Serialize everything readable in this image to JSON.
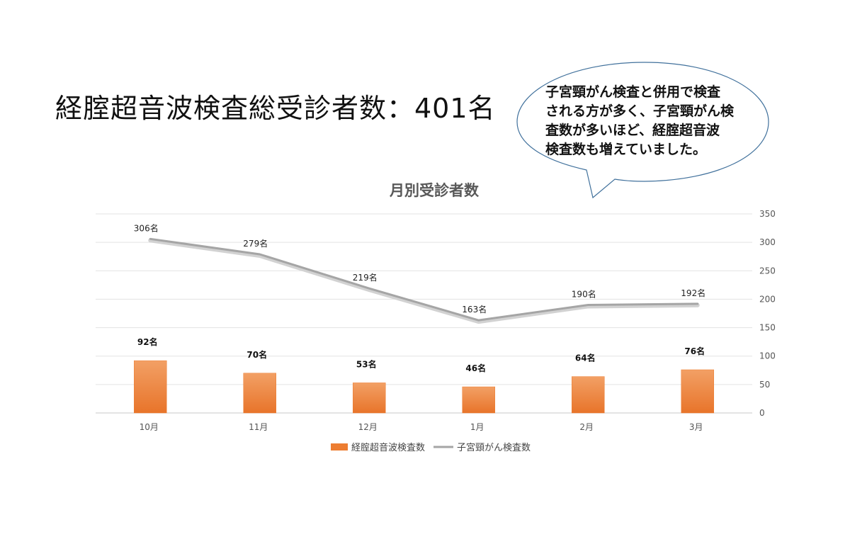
{
  "headline": "経腟超音波検査総受診者数：401名",
  "callout": {
    "lines": [
      "子宮頸がん検査と併用で検査",
      "される方が多く、子宮頸がん検",
      "査数が多いほど、経腟超音波",
      "検査数も増えていました。"
    ]
  },
  "colors": {
    "bar": "#ED7D31",
    "line": "#A5A5A5",
    "bubble_stroke": "#41719C"
  },
  "chart_data": {
    "type": "bar",
    "title": "月別受診者数",
    "categories": [
      "10月",
      "11月",
      "12月",
      "1月",
      "2月",
      "3月"
    ],
    "ylim": [
      0,
      350
    ],
    "yticks": [
      "0",
      "50",
      "100",
      "150",
      "200",
      "250",
      "300",
      "350"
    ],
    "grid": true,
    "legend_position": "bottom",
    "series": [
      {
        "name": "経腟超音波検査数",
        "type": "bar",
        "values": [
          92,
          70,
          53,
          46,
          64,
          76
        ],
        "labels": [
          "92名",
          "70名",
          "53名",
          "46名",
          "64名",
          "76名"
        ]
      },
      {
        "name": "子宮頸がん検査数",
        "type": "line",
        "values": [
          306,
          279,
          219,
          163,
          190,
          192
        ],
        "labels": [
          "306名",
          "279名",
          "219名",
          "163名",
          "190名",
          "192名"
        ]
      }
    ]
  }
}
